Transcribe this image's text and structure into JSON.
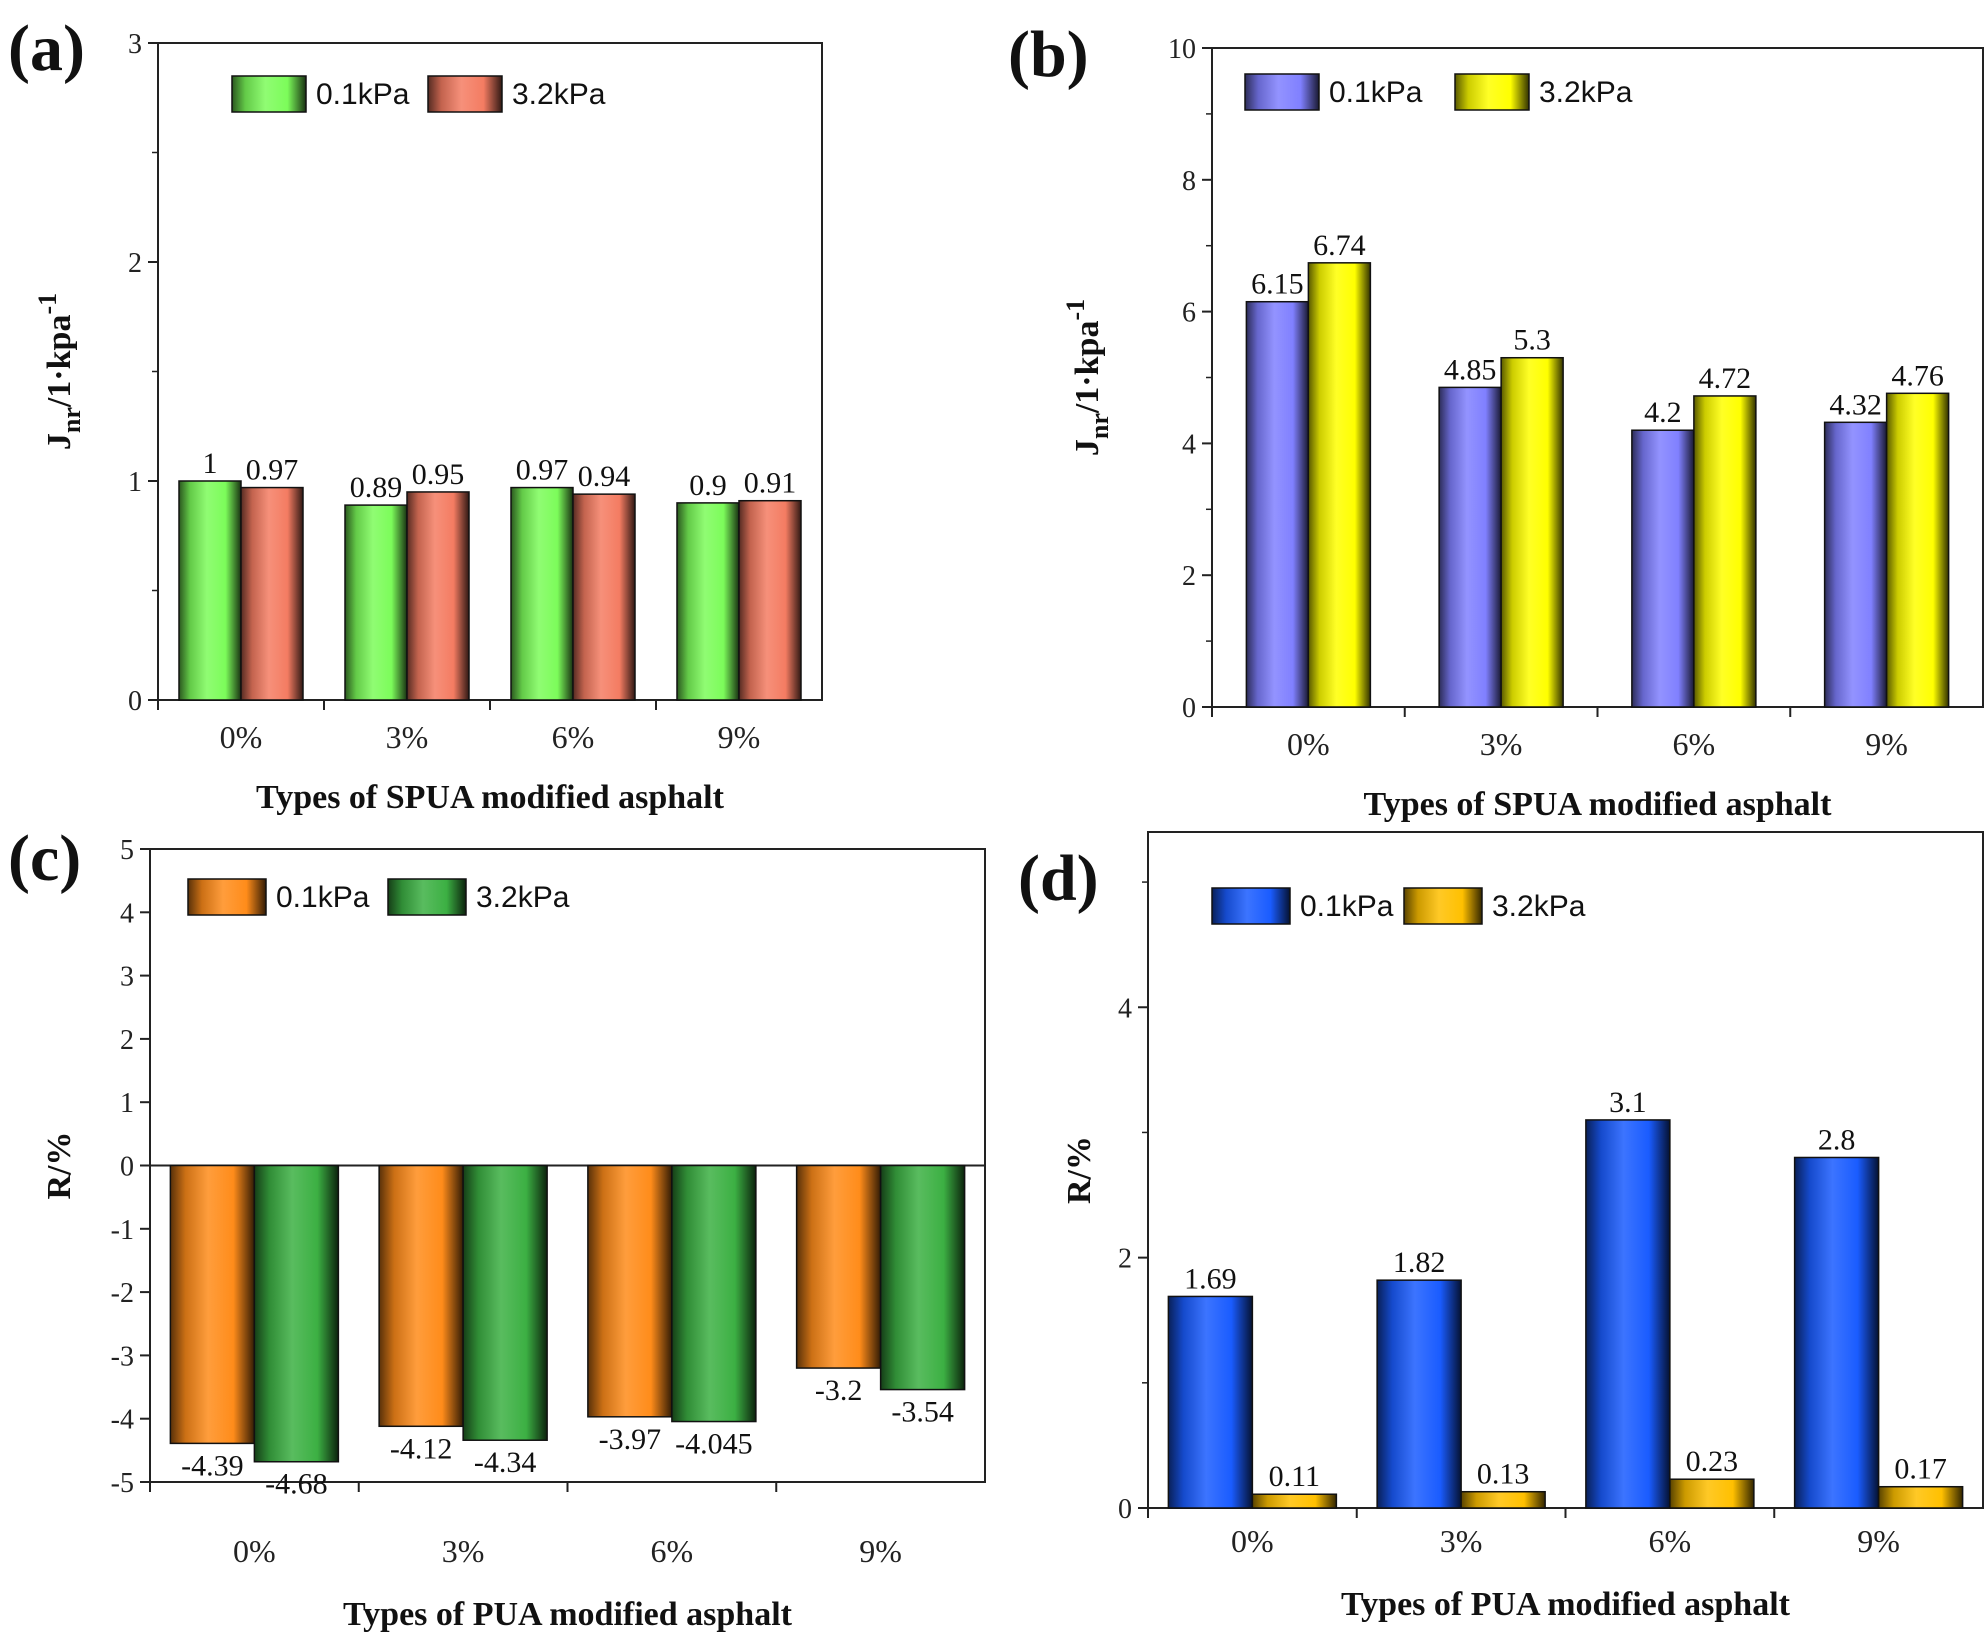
{
  "chart_data": [
    {
      "panel": "(a)",
      "type": "bar",
      "title": "",
      "xlabel": "Types of SPUA modified asphalt",
      "ylabel": "Jnr/1·kpa-1",
      "ylabel_main": "J",
      "ylabel_sub": "nr",
      "ylabel_rest": "/1·kpa",
      "ylabel_sup": "-1",
      "categories": [
        "0%",
        "3%",
        "6%",
        "9%"
      ],
      "ylim": [
        0,
        3
      ],
      "yticks": [
        0,
        1,
        2,
        3
      ],
      "legend_position": "top-left",
      "series": [
        {
          "name": "0.1kPa",
          "color": "#7CFC5A",
          "values": [
            1,
            0.89,
            0.97,
            0.9
          ],
          "labels": [
            "1",
            "0.89",
            "0.97",
            "0.9"
          ]
        },
        {
          "name": "3.2kPa",
          "color": "#F47C62",
          "values": [
            0.97,
            0.95,
            0.94,
            0.91
          ],
          "labels": [
            "0.97",
            "0.95",
            "0.94",
            "0.91"
          ]
        }
      ]
    },
    {
      "panel": "(b)",
      "type": "bar",
      "title": "",
      "xlabel": "Types of SPUA modified asphalt",
      "ylabel": "Jnr/1·kpa-1",
      "ylabel_main": "J",
      "ylabel_sub": "nr",
      "ylabel_rest": "/1·kpa",
      "ylabel_sup": "-1",
      "categories": [
        "0%",
        "3%",
        "6%",
        "9%"
      ],
      "ylim": [
        0,
        10
      ],
      "yticks": [
        0,
        2,
        4,
        6,
        8,
        10
      ],
      "legend_position": "top-left",
      "series": [
        {
          "name": "0.1kPa",
          "color": "#8080FF",
          "values": [
            6.15,
            4.85,
            4.2,
            4.32
          ],
          "labels": [
            "6.15",
            "4.85",
            "4.2",
            "4.32"
          ]
        },
        {
          "name": "3.2kPa",
          "color": "#FFFF00",
          "values": [
            6.74,
            5.3,
            4.72,
            4.76
          ],
          "labels": [
            "6.74",
            "5.3",
            "4.72",
            "4.76"
          ]
        }
      ]
    },
    {
      "panel": "(c)",
      "type": "bar",
      "title": "",
      "xlabel": "Types of PUA modified asphalt",
      "ylabel": "R/%",
      "categories": [
        "0%",
        "3%",
        "6%",
        "9%"
      ],
      "ylim": [
        -5,
        5
      ],
      "yticks": [
        -5,
        -4,
        -3,
        -2,
        -1,
        0,
        1,
        2,
        3,
        4,
        5
      ],
      "legend_position": "top-left",
      "series": [
        {
          "name": "0.1kPa",
          "color": "#FF8C1A",
          "values": [
            -4.39,
            -4.12,
            -3.97,
            -3.2
          ],
          "labels": [
            "-4.39",
            "-4.12",
            "-3.97",
            "-3.2"
          ]
        },
        {
          "name": "3.2kPa",
          "color": "#3CB043",
          "values": [
            -4.68,
            -4.34,
            -4.045,
            -3.54
          ],
          "labels": [
            "-4.68",
            "-4.34",
            "-4.045",
            "-3.54"
          ]
        }
      ]
    },
    {
      "panel": "(d)",
      "type": "bar",
      "title": "",
      "xlabel": "Types of PUA modified asphalt",
      "ylabel": "R/%",
      "categories": [
        "0%",
        "3%",
        "6%",
        "9%"
      ],
      "ylim": [
        0,
        5.4
      ],
      "yticks": [
        0,
        2,
        4
      ],
      "legend_position": "top-left",
      "series": [
        {
          "name": "0.1kPa",
          "color": "#1A5CFF",
          "values": [
            1.69,
            1.82,
            3.1,
            2.8
          ],
          "labels": [
            "1.69",
            "1.82",
            "3.1",
            "2.8"
          ]
        },
        {
          "name": "3.2kPa",
          "color": "#FFC000",
          "values": [
            0.11,
            0.13,
            0.23,
            0.17
          ],
          "labels": [
            "0.11",
            "0.13",
            "0.23",
            "0.17"
          ]
        }
      ]
    }
  ]
}
